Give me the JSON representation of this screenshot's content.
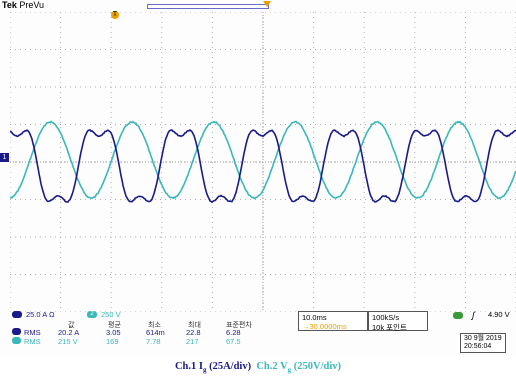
{
  "header": {
    "brand": "Tek",
    "mode": "PreVu"
  },
  "markers": {
    "trigger_label": "T",
    "ch1_label": "1"
  },
  "channel1": {
    "scale": "25.0 A Ω",
    "color": "#1a1a8a",
    "label": "1"
  },
  "channel2": {
    "scale": "250 V",
    "color": "#3ab8b8",
    "label": "2"
  },
  "measurements": {
    "headers": [
      "값",
      "평균",
      "최소",
      "최대",
      "표준편차"
    ],
    "rows": [
      {
        "type": "RMS",
        "value": "20.2 A",
        "mean": "3.05",
        "min": "614m",
        "max": "22.8",
        "std": "6.28"
      },
      {
        "type": "RMS",
        "value": "215 V",
        "mean": "169",
        "min": "7.78",
        "max": "217",
        "std": "67.5"
      }
    ]
  },
  "timebase": {
    "scale": "10.0ms",
    "position": "→30.0000ms"
  },
  "sampling": {
    "rate": "100kS/s",
    "points": "10k 포인트"
  },
  "trigger": {
    "source": "4",
    "slope": "ʃ",
    "level": "4.90 V",
    "color": "#3a9a3a"
  },
  "datetime": {
    "date": "30 9월 2019",
    "time": "20:56:04"
  },
  "caption": {
    "ch1_prefix": "Ch.1 I",
    "ch1_sub": "g",
    "ch1_suffix": " (25A/div)",
    "ch2_prefix": "Ch.2 V",
    "ch2_sub": "g",
    "ch2_suffix": " (250V/div)"
  },
  "waveforms": {
    "ch1_color": "#1a1a8a",
    "ch2_color": "#3ab8b8"
  }
}
